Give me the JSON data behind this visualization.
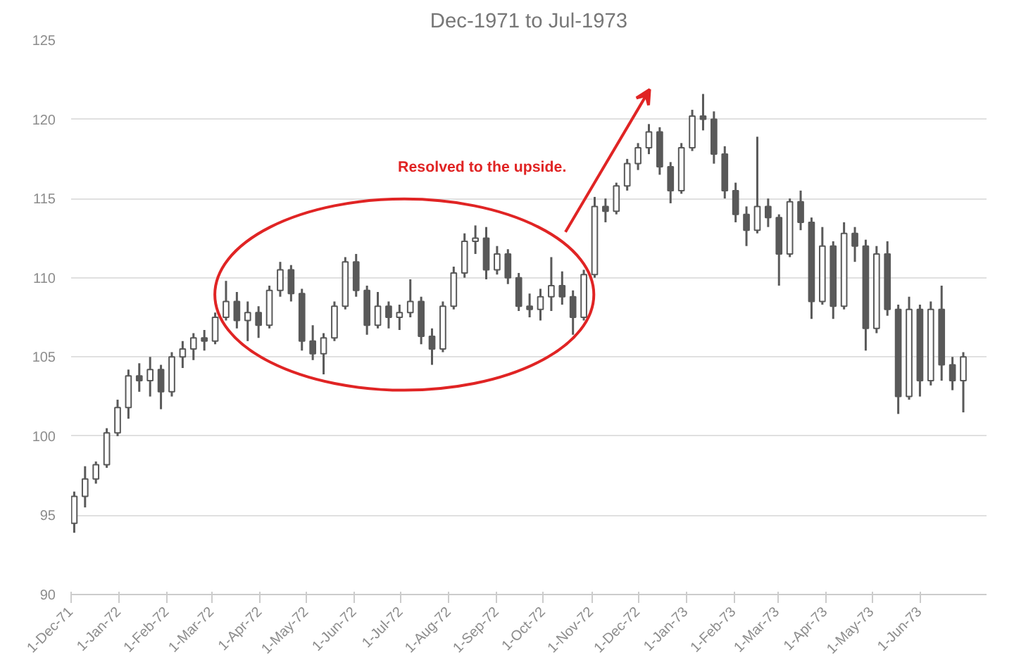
{
  "chart_data": {
    "type": "candlestick",
    "subtitle": "Dec-1971 to Jul-1973",
    "annotations": [
      "Resolved to the upside."
    ],
    "color": "#595959",
    "xlim": [
      "1971-12-01",
      "1973-07-14"
    ],
    "xticks": [
      {
        "value": "1971-12-01",
        "label": "1-Dec-71"
      },
      {
        "value": "1972-01-01",
        "label": "1-Jan-72"
      },
      {
        "value": "1972-02-01",
        "label": "1-Feb-72"
      },
      {
        "value": "1972-03-01",
        "label": "1-Mar-72"
      },
      {
        "value": "1972-04-01",
        "label": "1-Apr-72"
      },
      {
        "value": "1972-05-01",
        "label": "1-May-72"
      },
      {
        "value": "1972-06-01",
        "label": "1-Jun-72"
      },
      {
        "value": "1972-07-01",
        "label": "1-Jul-72"
      },
      {
        "value": "1972-08-01",
        "label": "1-Aug-72"
      },
      {
        "value": "1972-09-01",
        "label": "1-Sep-72"
      },
      {
        "value": "1972-10-01",
        "label": "1-Oct-72"
      },
      {
        "value": "1972-11-01",
        "label": "1-Nov-72"
      },
      {
        "value": "1972-12-01",
        "label": "1-Dec-72"
      },
      {
        "value": "1973-01-01",
        "label": "1-Jan-73"
      },
      {
        "value": "1973-02-01",
        "label": "1-Feb-73"
      },
      {
        "value": "1973-03-01",
        "label": "1-Mar-73"
      },
      {
        "value": "1973-04-01",
        "label": "1-Apr-73"
      },
      {
        "value": "1973-05-01",
        "label": "1-May-73"
      },
      {
        "value": "1973-06-01",
        "label": "1-Jun-73"
      }
    ],
    "ylim": [
      90,
      125
    ],
    "yticks": [
      90,
      95,
      100,
      105,
      110,
      115,
      120,
      125
    ],
    "grid": "y",
    "x": [
      "1971-12-03",
      "1971-12-10",
      "1971-12-17",
      "1971-12-24",
      "1971-12-31",
      "1972-01-07",
      "1972-01-14",
      "1972-01-21",
      "1972-01-28",
      "1972-02-04",
      "1972-02-11",
      "1972-02-18",
      "1972-02-25",
      "1972-03-03",
      "1972-03-10",
      "1972-03-17",
      "1972-03-24",
      "1972-03-31",
      "1972-04-07",
      "1972-04-14",
      "1972-04-21",
      "1972-04-28",
      "1972-05-05",
      "1972-05-12",
      "1972-05-19",
      "1972-05-26",
      "1972-06-02",
      "1972-06-09",
      "1972-06-16",
      "1972-06-23",
      "1972-06-30",
      "1972-07-07",
      "1972-07-14",
      "1972-07-21",
      "1972-07-28",
      "1972-08-04",
      "1972-08-11",
      "1972-08-18",
      "1972-08-25",
      "1972-09-01",
      "1972-09-08",
      "1972-09-15",
      "1972-09-22",
      "1972-09-29",
      "1972-10-06",
      "1972-10-13",
      "1972-10-20",
      "1972-10-27",
      "1972-11-03",
      "1972-11-10",
      "1972-11-17",
      "1972-11-24",
      "1972-12-01",
      "1972-12-08",
      "1972-12-15",
      "1972-12-22",
      "1972-12-29",
      "1973-01-05",
      "1973-01-12",
      "1973-01-19",
      "1973-01-26",
      "1973-02-02",
      "1973-02-09",
      "1973-02-16",
      "1973-02-23",
      "1973-03-02",
      "1973-03-09",
      "1973-03-16",
      "1973-03-23",
      "1973-03-30",
      "1973-04-06",
      "1973-04-13",
      "1973-04-20",
      "1973-04-27",
      "1973-05-04",
      "1973-05-11",
      "1973-05-18",
      "1973-05-25",
      "1973-06-01",
      "1973-06-08",
      "1973-06-15",
      "1973-06-22",
      "1973-06-29"
    ],
    "ohlc": [
      [
        94.5,
        96.5,
        93.9,
        96.2
      ],
      [
        96.2,
        98.1,
        95.5,
        97.3
      ],
      [
        97.3,
        98.4,
        97,
        98.2
      ],
      [
        98.2,
        100.5,
        98,
        100.2
      ],
      [
        100.2,
        102.3,
        100,
        101.8
      ],
      [
        101.8,
        104.2,
        101.1,
        103.8
      ],
      [
        103.8,
        104.6,
        102.8,
        103.5
      ],
      [
        103.5,
        105,
        102.5,
        104.2
      ],
      [
        104.2,
        104.5,
        101.7,
        102.8
      ],
      [
        102.8,
        105.3,
        102.5,
        105
      ],
      [
        105,
        106,
        104.3,
        105.5
      ],
      [
        105.5,
        106.5,
        104.8,
        106.2
      ],
      [
        106.2,
        106.7,
        105.4,
        106
      ],
      [
        106,
        107.8,
        105.8,
        107.5
      ],
      [
        107.5,
        109.8,
        107.3,
        108.5
      ],
      [
        108.5,
        109.1,
        106.8,
        107.3
      ],
      [
        107.3,
        108.5,
        106,
        107.8
      ],
      [
        107.8,
        108.2,
        106.2,
        107
      ],
      [
        107,
        109.5,
        106.8,
        109.2
      ],
      [
        109.2,
        111,
        108.8,
        110.5
      ],
      [
        110.5,
        110.8,
        108.5,
        109
      ],
      [
        109,
        109.3,
        105.4,
        106
      ],
      [
        106,
        107,
        104.8,
        105.2
      ],
      [
        105.2,
        106.5,
        103.9,
        106.2
      ],
      [
        106.2,
        108.5,
        106,
        108.2
      ],
      [
        108.2,
        111.3,
        108,
        111
      ],
      [
        111,
        111.5,
        108.8,
        109.2
      ],
      [
        109.2,
        109.5,
        106.4,
        107
      ],
      [
        107,
        109.1,
        106.8,
        108.2
      ],
      [
        108.2,
        108.5,
        106.8,
        107.5
      ],
      [
        107.5,
        108.3,
        106.7,
        107.8
      ],
      [
        107.8,
        109.9,
        107.5,
        108.5
      ],
      [
        108.5,
        108.8,
        105.8,
        106.3
      ],
      [
        106.3,
        106.8,
        104.5,
        105.5
      ],
      [
        105.5,
        108.5,
        105.3,
        108.2
      ],
      [
        108.2,
        110.7,
        108,
        110.3
      ],
      [
        110.3,
        112.8,
        110,
        112.3
      ],
      [
        112.3,
        113.3,
        111.5,
        112.5
      ],
      [
        112.5,
        113.2,
        109.9,
        110.5
      ],
      [
        110.5,
        112,
        110.2,
        111.5
      ],
      [
        111.5,
        111.8,
        109.6,
        110
      ],
      [
        110,
        110.3,
        107.9,
        108.2
      ],
      [
        108.2,
        109,
        107.5,
        108
      ],
      [
        108,
        109.3,
        107.3,
        108.8
      ],
      [
        108.8,
        111.3,
        107.9,
        109.5
      ],
      [
        109.5,
        110.4,
        108.3,
        108.8
      ],
      [
        108.8,
        109.2,
        106.4,
        107.5
      ],
      [
        107.5,
        110.5,
        107.3,
        110.2
      ],
      [
        110.2,
        115.1,
        110,
        114.5
      ],
      [
        114.5,
        115,
        113.5,
        114.2
      ],
      [
        114.2,
        116,
        114,
        115.8
      ],
      [
        115.8,
        117.5,
        115.5,
        117.2
      ],
      [
        117.2,
        118.5,
        116.8,
        118.2
      ],
      [
        118.2,
        119.7,
        117.8,
        119.2
      ],
      [
        119.2,
        119.5,
        116.5,
        117
      ],
      [
        117,
        117.3,
        114.7,
        115.5
      ],
      [
        115.5,
        118.5,
        115.3,
        118.2
      ],
      [
        118.2,
        120.6,
        118,
        120.2
      ],
      [
        120.2,
        121.6,
        119.3,
        120
      ],
      [
        120,
        120.5,
        117.2,
        117.8
      ],
      [
        117.8,
        118.3,
        115,
        115.5
      ],
      [
        115.5,
        116,
        113.5,
        114
      ],
      [
        114,
        114.5,
        112,
        113
      ],
      [
        113,
        118.9,
        112.8,
        114.5
      ],
      [
        114.5,
        115,
        113.2,
        113.8
      ],
      [
        113.8,
        114,
        109.5,
        111.5
      ],
      [
        111.5,
        115,
        111.3,
        114.8
      ],
      [
        114.8,
        115.5,
        113,
        113.5
      ],
      [
        113.5,
        113.8,
        107.4,
        108.5
      ],
      [
        108.5,
        113.2,
        108.3,
        112
      ],
      [
        112,
        112.3,
        107.4,
        108.2
      ],
      [
        108.2,
        113.5,
        108,
        112.8
      ],
      [
        112.8,
        113.2,
        111,
        112
      ],
      [
        112,
        112.4,
        105.4,
        106.8
      ],
      [
        106.8,
        112,
        106.5,
        111.5
      ],
      [
        111.5,
        112.3,
        107.6,
        108
      ],
      [
        108,
        108.3,
        101.4,
        102.5
      ],
      [
        102.5,
        108.8,
        102.3,
        108
      ],
      [
        108,
        108.3,
        102.5,
        103.5
      ],
      [
        103.5,
        108.5,
        103.2,
        108
      ],
      [
        108,
        109.5,
        103.5,
        104.5
      ],
      [
        104.5,
        105,
        102.9,
        103.5
      ],
      [
        103.5,
        105.3,
        101.5,
        105
      ]
    ]
  }
}
